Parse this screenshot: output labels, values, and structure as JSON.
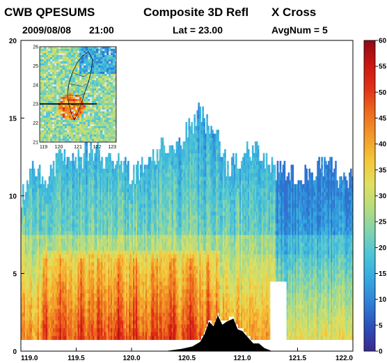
{
  "header": {
    "product": "CWB QPESUMS",
    "title": "Composite 3D Refl",
    "mode": "X Cross",
    "date": "2009/08/08",
    "time": "21:00",
    "lat_label": "Lat = 23.00",
    "avgnum_label": "AvgNum = 5"
  },
  "chart_data": [
    {
      "type": "heatmap",
      "description_kind": "vertical cross-section of radar reflectivity",
      "title": "Composite 3D Refl  X Cross",
      "xlabel": "",
      "ylabel": "",
      "xlim": [
        119.0,
        122.0
      ],
      "ylim": [
        0,
        20
      ],
      "x_ticks": [
        "119.0",
        "119.5",
        "120.0",
        "120.5",
        "121.0",
        "121.5",
        "122.0"
      ],
      "y_ticks": [
        "0",
        "5",
        "10",
        "15",
        "20"
      ],
      "colorbar": {
        "range": [
          0,
          60
        ],
        "ticks": [
          "0",
          "5",
          "10",
          "15",
          "20",
          "25",
          "30",
          "35",
          "40",
          "45",
          "50",
          "55",
          "60"
        ]
      },
      "echo_top_km": [
        {
          "x": 119.0,
          "top": 10.0
        },
        {
          "x": 119.1,
          "top": 11.6
        },
        {
          "x": 119.2,
          "top": 11.0
        },
        {
          "x": 119.35,
          "top": 12.4
        },
        {
          "x": 119.5,
          "top": 12.2
        },
        {
          "x": 119.65,
          "top": 13.0
        },
        {
          "x": 119.75,
          "top": 11.8
        },
        {
          "x": 119.85,
          "top": 12.5
        },
        {
          "x": 120.0,
          "top": 11.2
        },
        {
          "x": 120.15,
          "top": 12.0
        },
        {
          "x": 120.3,
          "top": 13.2
        },
        {
          "x": 120.45,
          "top": 13.5
        },
        {
          "x": 120.6,
          "top": 15.2
        },
        {
          "x": 120.75,
          "top": 13.8
        },
        {
          "x": 120.85,
          "top": 11.8
        },
        {
          "x": 121.0,
          "top": 12.4
        },
        {
          "x": 121.15,
          "top": 12.8
        },
        {
          "x": 121.3,
          "top": 11.6
        },
        {
          "x": 121.45,
          "top": 11.2
        },
        {
          "x": 121.6,
          "top": 11.5
        },
        {
          "x": 121.75,
          "top": 12.0
        },
        {
          "x": 121.85,
          "top": 11.2
        },
        {
          "x": 122.0,
          "top": 11.0
        }
      ],
      "terrain_km": [
        {
          "x": 120.3,
          "h": 0.0
        },
        {
          "x": 120.45,
          "h": 0.15
        },
        {
          "x": 120.55,
          "h": 0.3
        },
        {
          "x": 120.62,
          "h": 0.6
        },
        {
          "x": 120.66,
          "h": 1.1
        },
        {
          "x": 120.7,
          "h": 1.9
        },
        {
          "x": 120.74,
          "h": 1.6
        },
        {
          "x": 120.78,
          "h": 2.3
        },
        {
          "x": 120.82,
          "h": 1.7
        },
        {
          "x": 120.86,
          "h": 1.9
        },
        {
          "x": 120.92,
          "h": 2.1
        },
        {
          "x": 120.96,
          "h": 1.4
        },
        {
          "x": 121.0,
          "h": 1.3
        },
        {
          "x": 121.05,
          "h": 0.9
        },
        {
          "x": 121.1,
          "h": 0.5
        },
        {
          "x": 121.15,
          "h": 0.5
        },
        {
          "x": 121.2,
          "h": 0.2
        },
        {
          "x": 121.27,
          "h": 0.0
        }
      ]
    },
    {
      "type": "heatmap",
      "description_kind": "inset map of reflectivity with cross-section line",
      "title": "",
      "xlim": [
        119,
        123
      ],
      "ylim": [
        21,
        26
      ],
      "x_ticks": [
        "119",
        "120",
        "121",
        "122",
        "123"
      ],
      "y_ticks": [
        "21",
        "22",
        "23",
        "24",
        "25",
        "26"
      ],
      "section_latitude": 23.0
    }
  ],
  "colors": {
    "terrain": "#000000",
    "section_line": "#000000",
    "colorbar_stops": [
      "#3b2a8f",
      "#2c4fb8",
      "#2f7fd6",
      "#35a8e0",
      "#4bc4d8",
      "#7fd3b0",
      "#b6dc7e",
      "#e0e060",
      "#f5c53a",
      "#f29a2a",
      "#ec6a1e",
      "#e03018",
      "#c81612",
      "#8e0a14"
    ]
  }
}
